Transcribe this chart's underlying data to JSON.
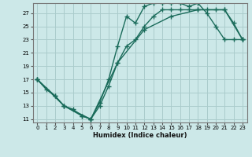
{
  "xlabel": "Humidex (Indice chaleur)",
  "bg_color": "#cce8e8",
  "grid_color": "#aacccc",
  "line_color": "#1a6b5a",
  "marker": "+",
  "markersize": 4,
  "linewidth": 1.0,
  "xlim": [
    -0.5,
    23.5
  ],
  "ylim": [
    10.5,
    28.5
  ],
  "xticks": [
    0,
    1,
    2,
    3,
    4,
    5,
    6,
    7,
    8,
    9,
    10,
    11,
    12,
    13,
    14,
    15,
    16,
    17,
    18,
    19,
    20,
    21,
    22,
    23
  ],
  "yticks": [
    11,
    13,
    15,
    17,
    19,
    21,
    23,
    25,
    27
  ],
  "curve1_x": [
    0,
    1,
    2,
    3,
    4,
    5,
    6,
    7,
    8,
    9,
    10,
    11,
    12,
    13,
    14,
    15,
    16,
    17,
    18,
    19,
    20,
    21,
    22,
    23
  ],
  "curve1_y": [
    17.0,
    15.5,
    14.5,
    13.0,
    12.5,
    11.5,
    11.0,
    13.5,
    17.0,
    22.0,
    26.5,
    25.5,
    28.0,
    28.5,
    28.5,
    28.5,
    28.5,
    28.0,
    28.5,
    27.0,
    25.0,
    23.0,
    23.0,
    23.0
  ],
  "curve2_x": [
    0,
    2,
    3,
    5,
    6,
    7,
    8,
    9,
    10,
    11,
    12,
    13,
    14,
    15,
    16,
    17,
    18,
    19,
    20,
    21,
    22,
    23
  ],
  "curve2_y": [
    17.0,
    14.5,
    13.0,
    11.5,
    11.0,
    13.0,
    16.0,
    19.5,
    22.0,
    23.0,
    25.0,
    26.5,
    27.5,
    27.5,
    27.5,
    27.5,
    27.5,
    27.5,
    27.5,
    27.5,
    25.5,
    23.0
  ],
  "curve3_x": [
    0,
    3,
    6,
    9,
    12,
    15,
    18,
    21,
    23
  ],
  "curve3_y": [
    17.0,
    13.0,
    11.0,
    19.5,
    24.5,
    26.5,
    27.5,
    27.5,
    23.0
  ]
}
